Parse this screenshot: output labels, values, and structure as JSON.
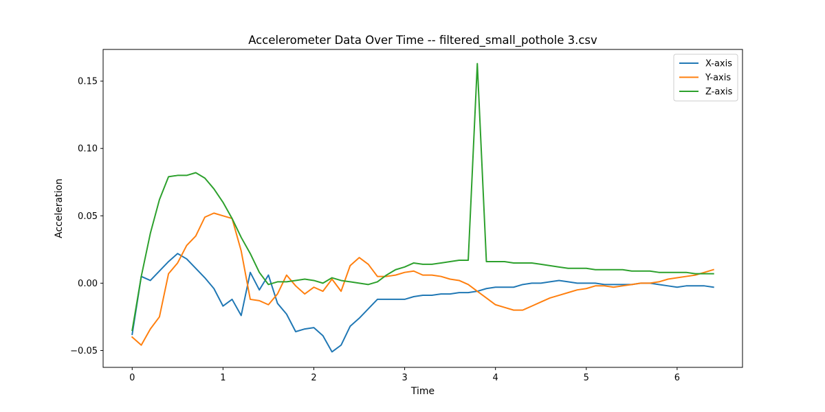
{
  "chart_data": {
    "type": "line",
    "title": "Accelerometer Data Over Time -- filtered_small_pothole 3.csv",
    "xlabel": "Time",
    "ylabel": "Acceleration",
    "xlim": [
      -0.32,
      6.72
    ],
    "ylim": [
      -0.0625,
      0.1735
    ],
    "x_ticks": [
      0,
      1,
      2,
      3,
      4,
      5,
      6
    ],
    "y_ticks": [
      -0.05,
      0.0,
      0.05,
      0.1,
      0.15
    ],
    "y_tick_labels": [
      "−0.05",
      "0.00",
      "0.05",
      "0.10",
      "0.15"
    ],
    "grid": false,
    "legend_position": "top-right",
    "x": [
      0.0,
      0.1,
      0.2,
      0.3,
      0.4,
      0.5,
      0.6,
      0.7,
      0.8,
      0.9,
      1.0,
      1.1,
      1.2,
      1.3,
      1.4,
      1.5,
      1.6,
      1.7,
      1.8,
      1.9,
      2.0,
      2.1,
      2.2,
      2.3,
      2.4,
      2.5,
      2.6,
      2.7,
      2.8,
      2.9,
      3.0,
      3.1,
      3.2,
      3.3,
      3.4,
      3.5,
      3.6,
      3.7,
      3.8,
      3.9,
      4.0,
      4.1,
      4.2,
      4.3,
      4.4,
      4.5,
      4.6,
      4.7,
      4.8,
      4.9,
      5.0,
      5.1,
      5.2,
      5.3,
      5.4,
      5.5,
      5.6,
      5.7,
      5.8,
      5.9,
      6.0,
      6.1,
      6.2,
      6.3,
      6.4
    ],
    "series": [
      {
        "name": "X-axis",
        "color": "#1f77b4",
        "values": [
          -0.038,
          0.005,
          0.002,
          0.009,
          0.016,
          0.022,
          0.018,
          0.011,
          0.004,
          -0.004,
          -0.017,
          -0.012,
          -0.024,
          0.008,
          -0.005,
          0.006,
          -0.015,
          -0.023,
          -0.036,
          -0.034,
          -0.033,
          -0.039,
          -0.051,
          -0.046,
          -0.032,
          -0.026,
          -0.019,
          -0.012,
          -0.012,
          -0.012,
          -0.012,
          -0.01,
          -0.009,
          -0.009,
          -0.008,
          -0.008,
          -0.007,
          -0.007,
          -0.006,
          -0.004,
          -0.003,
          -0.003,
          -0.003,
          -0.001,
          0.0,
          0.0,
          0.001,
          0.002,
          0.001,
          0.0,
          0.0,
          0.0,
          -0.001,
          -0.001,
          -0.001,
          -0.001,
          0.0,
          0.0,
          -0.001,
          -0.002,
          -0.003,
          -0.002,
          -0.002,
          -0.002,
          -0.003
        ]
      },
      {
        "name": "Y-axis",
        "color": "#ff7f0e",
        "values": [
          -0.04,
          -0.046,
          -0.034,
          -0.025,
          0.007,
          0.015,
          0.028,
          0.035,
          0.049,
          0.052,
          0.05,
          0.048,
          0.024,
          -0.012,
          -0.013,
          -0.016,
          -0.008,
          0.006,
          -0.002,
          -0.008,
          -0.003,
          -0.006,
          0.003,
          -0.006,
          0.013,
          0.019,
          0.014,
          0.005,
          0.005,
          0.006,
          0.008,
          0.009,
          0.006,
          0.006,
          0.005,
          0.003,
          0.002,
          -0.001,
          -0.006,
          -0.011,
          -0.016,
          -0.018,
          -0.02,
          -0.02,
          -0.017,
          -0.014,
          -0.011,
          -0.009,
          -0.007,
          -0.005,
          -0.004,
          -0.002,
          -0.002,
          -0.003,
          -0.002,
          -0.001,
          0.0,
          0.0,
          0.001,
          0.003,
          0.004,
          0.005,
          0.006,
          0.008,
          0.01
        ]
      },
      {
        "name": "Z-axis",
        "color": "#2ca02c",
        "values": [
          -0.035,
          0.005,
          0.037,
          0.062,
          0.079,
          0.08,
          0.08,
          0.082,
          0.078,
          0.07,
          0.06,
          0.048,
          0.034,
          0.022,
          0.008,
          -0.001,
          0.001,
          0.001,
          0.002,
          0.003,
          0.002,
          0.0,
          0.004,
          0.002,
          0.001,
          0.0,
          -0.001,
          0.001,
          0.006,
          0.01,
          0.012,
          0.015,
          0.014,
          0.014,
          0.015,
          0.016,
          0.017,
          0.017,
          0.163,
          0.016,
          0.016,
          0.016,
          0.015,
          0.015,
          0.015,
          0.014,
          0.013,
          0.012,
          0.011,
          0.011,
          0.011,
          0.01,
          0.01,
          0.01,
          0.01,
          0.009,
          0.009,
          0.009,
          0.008,
          0.008,
          0.008,
          0.008,
          0.007,
          0.007,
          0.007
        ]
      }
    ]
  }
}
